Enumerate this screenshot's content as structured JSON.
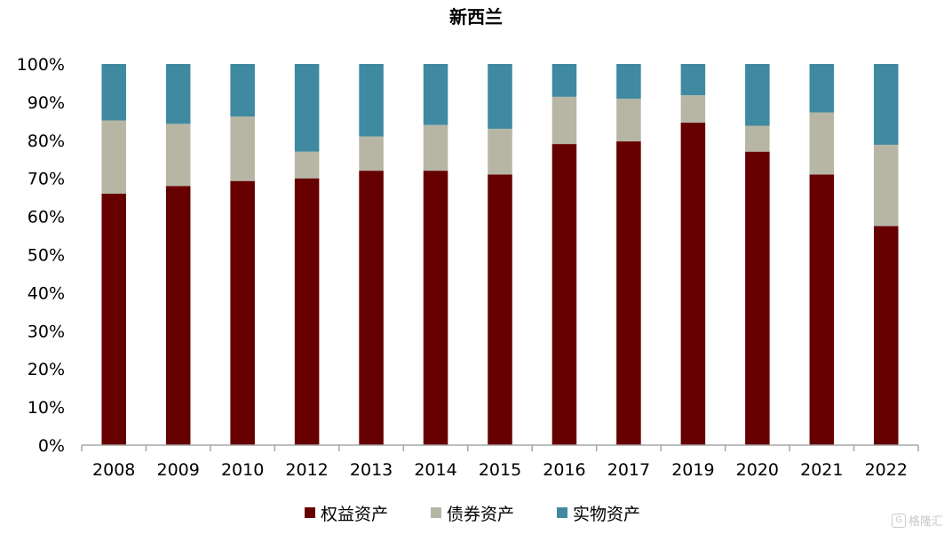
{
  "colors": {
    "equity": "#660000",
    "bond": "#b7b6a5",
    "real": "#3f8aa0",
    "axis": "#a6a6a6"
  },
  "chart_data": {
    "type": "bar",
    "stacked": true,
    "title": "新西兰",
    "xlabel": "",
    "ylabel": "",
    "ylim": [
      0,
      100
    ],
    "y_tick_labels": [
      "0%",
      "10%",
      "20%",
      "30%",
      "40%",
      "50%",
      "60%",
      "70%",
      "80%",
      "90%",
      "100%"
    ],
    "categories": [
      "2008",
      "2009",
      "2010",
      "2012",
      "2013",
      "2014",
      "2015",
      "2016",
      "2017",
      "2019",
      "2020",
      "2021",
      "2022"
    ],
    "series": [
      {
        "name": "权益资产",
        "color": "#660000",
        "values": [
          66,
          68,
          69.3,
          70,
          72,
          72,
          71,
          79,
          79.7,
          84.6,
          77,
          71,
          57.5
        ]
      },
      {
        "name": "债券资产",
        "color": "#b7b6a5",
        "values": [
          19.2,
          16.3,
          16.9,
          7,
          9,
          12,
          12,
          12.4,
          11.2,
          7.2,
          6.8,
          16.3,
          21.3
        ]
      },
      {
        "name": "实物资产",
        "color": "#3f8aa0",
        "values": [
          14.8,
          15.7,
          13.8,
          23,
          19,
          16,
          17,
          8.6,
          9.1,
          8.2,
          16.2,
          12.7,
          21.2
        ]
      }
    ],
    "legend_position": "bottom",
    "grid": false
  },
  "watermark": {
    "mark": "G",
    "text": "格隆汇"
  }
}
